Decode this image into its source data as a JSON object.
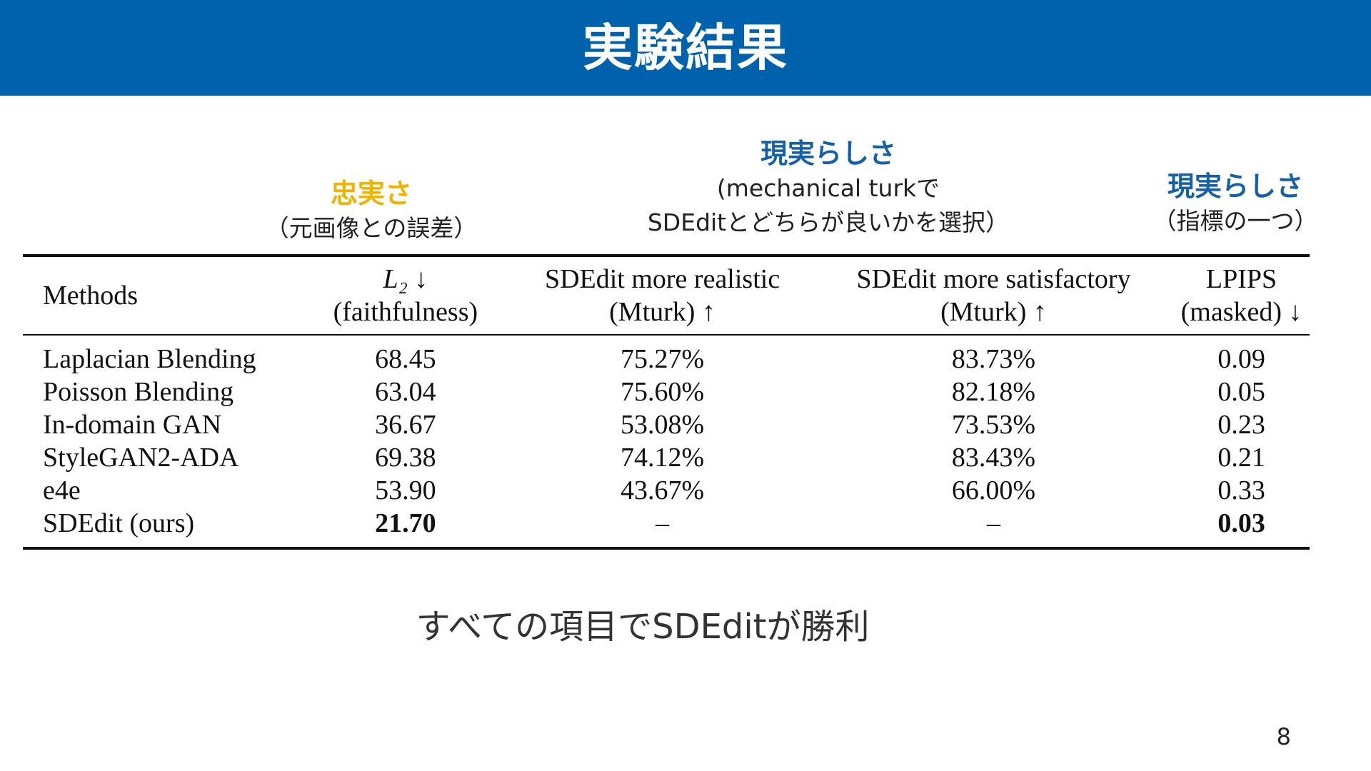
{
  "slide": {
    "title": "実験結果",
    "page_number": "8",
    "conclusion": "すべての項目でSDEditが勝利"
  },
  "colors": {
    "header_bar": "#0062ad",
    "faithfulness_heading": "#f0b400",
    "realism_heading": "#1560a8"
  },
  "annotations": {
    "faithfulness": {
      "heading": "忠実さ",
      "sub": "（元画像との誤差）"
    },
    "mturk": {
      "heading": "現実らしさ",
      "sub1": "(mechanical turkで",
      "sub2": "SDEditとどちらが良いかを選択）"
    },
    "lpips": {
      "heading": "現実らしさ",
      "sub": "（指標の一つ）"
    }
  },
  "table": {
    "headers": {
      "methods": "Methods",
      "l2_symbol": "L₂ ↓",
      "l2_sub": "(faithfulness)",
      "realistic_1": "SDEdit more realistic",
      "realistic_2": "(Mturk) ↑",
      "satisfactory_1": "SDEdit more satisfactory",
      "satisfactory_2": "(Mturk) ↑",
      "lpips_1": "LPIPS",
      "lpips_2": "(masked) ↓"
    },
    "rows": [
      {
        "method": "Laplacian Blending",
        "l2": "68.45",
        "realistic": "75.27%",
        "satisfactory": "83.73%",
        "lpips": "0.09"
      },
      {
        "method": "Poisson Blending",
        "l2": "63.04",
        "realistic": "75.60%",
        "satisfactory": "82.18%",
        "lpips": "0.05"
      },
      {
        "method": "In-domain GAN",
        "l2": "36.67",
        "realistic": "53.08%",
        "satisfactory": "73.53%",
        "lpips": "0.23"
      },
      {
        "method": "StyleGAN2-ADA",
        "l2": "69.38",
        "realistic": "74.12%",
        "satisfactory": "83.43%",
        "lpips": "0.21"
      },
      {
        "method": "e4e",
        "l2": "53.90",
        "realistic": "43.67%",
        "satisfactory": "66.00%",
        "lpips": "0.33"
      },
      {
        "method": "SDEdit (ours)",
        "l2": "21.70",
        "realistic": "–",
        "satisfactory": "–",
        "lpips": "0.03"
      }
    ]
  }
}
